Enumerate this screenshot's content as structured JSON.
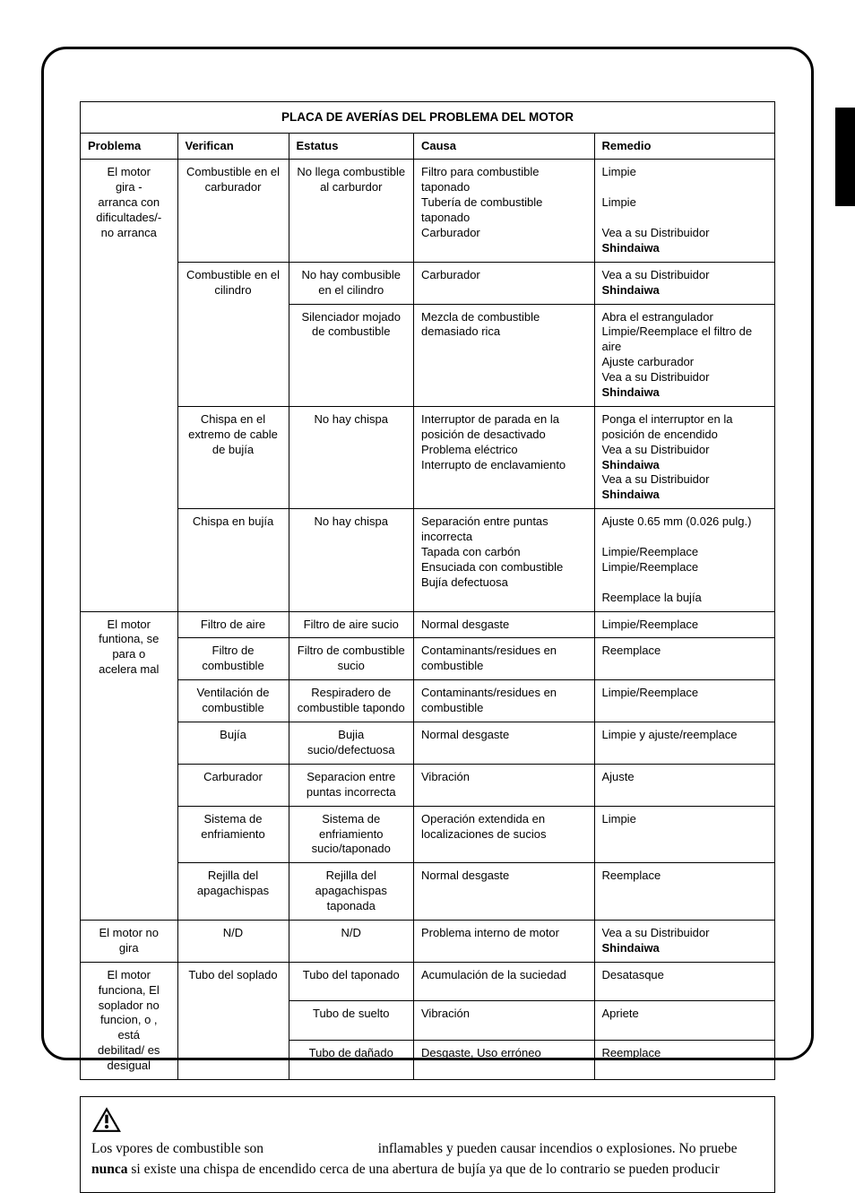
{
  "table": {
    "title": "PLACA DE AVERÍAS DEL PROBLEMA DEL MOTOR",
    "columns": [
      "Problema",
      "Verifican",
      "Estatus",
      "Causa",
      "Remedio"
    ],
    "col_widths_pct": [
      14,
      16,
      18,
      26,
      26
    ],
    "sections": [
      {
        "problem": "El motor\ngira -\narranca con\ndificultades/-\nno arranca",
        "rows": [
          {
            "check": "Combustible en el carburador",
            "status": "No llega combustible al carburdor",
            "cause": "Filtro para combustible taponado\nTubería de combustible taponado\nCarburador",
            "remedy": "Limpie\n\nLimpie\n\nVea a su Distribuidor <b>Shindaiwa</b>"
          },
          {
            "check": "Combustible en el cilindro",
            "status": "No hay combusible en el cilindro",
            "cause": "Carburador",
            "remedy": "Vea a su Distribuidor <b>Shindaiwa</b>"
          },
          {
            "check": "",
            "status": "Silenciador mojado de combustible",
            "cause": "Mezcla de combustible demasiado rica",
            "remedy": "Abra el estrangulador\nLimpie/Reemplace el filtro de aire\nAjuste carburador\nVea a su Distribuidor <b>Shindaiwa</b>",
            "merge_up_check": true
          },
          {
            "check": "Chispa en el extremo de cable de bujía",
            "status": "No hay chispa",
            "cause": "Interruptor de parada en la posición de desactivado\nProblema eléctrico\nInterrupto de enclavamiento",
            "remedy": "Ponga el interruptor en la posición de encendido\nVea a su Distribuidor <b>Shindaiwa</b>\nVea a su Distribuidor <b>Shindaiwa</b>"
          },
          {
            "check": "Chispa en bujía",
            "status": "No hay chispa",
            "cause": "Separación entre puntas incorrecta\nTapada con carbón\nEnsuciada con combustible\nBujía defectuosa",
            "remedy": "Ajuste 0.65 mm (0.026 pulg.)\n\nLimpie/Reemplace\nLimpie/Reemplace\n\nReemplace la bujía"
          }
        ]
      },
      {
        "problem": "El motor\nfuntiona, se\npara o\nacelera mal",
        "rows": [
          {
            "check": "Filtro de aire",
            "status": "Filtro de aire sucio",
            "cause": "Normal desgaste",
            "remedy": "Limpie/Reemplace"
          },
          {
            "check": "Filtro de combustible",
            "status": "Filtro de combustible sucio",
            "cause": "Contaminants/residues en combustible",
            "remedy": "Reemplace"
          },
          {
            "check": "Ventilación de combustible",
            "status": "Respiradero de combustible tapondo",
            "cause": "Contaminants/residues en combustible",
            "remedy": "Limpie/Reemplace"
          },
          {
            "check": "Bujía",
            "status": "Bujia sucio/defectuosa",
            "cause": "Normal desgaste",
            "remedy": "Limpie y ajuste/reemplace"
          },
          {
            "check": "Carburador",
            "status": "Separacion entre puntas incorrecta",
            "cause": "Vibración",
            "remedy": "Ajuste"
          },
          {
            "check": "Sistema de enfriamiento",
            "status": "Sistema de enfriamiento sucio/taponado",
            "cause": "Operación extendida en localizaciones de sucios",
            "remedy": "Limpie"
          },
          {
            "check": "Rejilla del apagachispas",
            "status": "Rejilla del apagachispas taponada",
            "cause": "Normal desgaste",
            "remedy": "Reemplace"
          }
        ]
      },
      {
        "problem": "El motor no gira",
        "rows": [
          {
            "check": "N/D",
            "status": "N/D",
            "cause": "Problema interno de motor",
            "remedy": "Vea a su Distribuidor <b>Shindaiwa</b>"
          }
        ]
      },
      {
        "problem": "El motor\nfunciona, El\nsoplador no\nfuncion, o ,\nestá\ndebilitad/ es\ndesigual",
        "check_merged": "Tubo del soplado",
        "rows": [
          {
            "status": "Tubo del taponado",
            "cause": "Acumulación de la suciedad",
            "remedy": "Desatasque"
          },
          {
            "status": "Tubo de suelto",
            "cause": "Vibración",
            "remedy": "Apriete"
          },
          {
            "status": "Tubo de dañado",
            "cause": "Desgaste, Uso erróneo",
            "remedy": "Reemplace"
          }
        ]
      }
    ]
  },
  "warning": {
    "line1_a": "Los vpores de combustible son",
    "line1_b": "inflamables y pueden causar incendios o explosiones. No pruebe",
    "line2_bold": "nunca",
    "line2_rest": " si existe una chispa de encendido cerca de una abertura de bujía ya que de lo contrario se pueden producir"
  }
}
